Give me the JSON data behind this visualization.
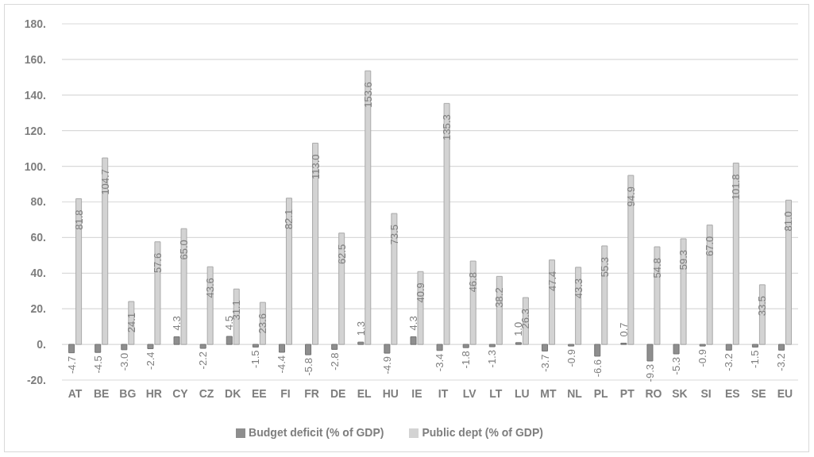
{
  "chart_data": {
    "type": "bar",
    "categories": [
      "AT",
      "BE",
      "BG",
      "HR",
      "CY",
      "CZ",
      "DK",
      "EE",
      "FI",
      "FR",
      "DE",
      "EL",
      "HU",
      "IE",
      "IT",
      "LV",
      "LT",
      "LU",
      "MT",
      "NL",
      "PL",
      "PT",
      "RO",
      "SK",
      "SI",
      "ES",
      "SE",
      "EU"
    ],
    "series": [
      {
        "name": "Budget deficit (% of GDP)",
        "color": "#8e8e8e",
        "values": [
          -4.7,
          -4.5,
          -3.0,
          -2.4,
          4.3,
          -2.2,
          4.5,
          -1.5,
          -4.4,
          -5.8,
          -2.8,
          1.3,
          -4.9,
          4.3,
          -3.4,
          -1.8,
          -1.3,
          1.0,
          -3.7,
          -0.9,
          -6.6,
          0.7,
          -9.3,
          -5.3,
          -0.9,
          -3.2,
          -1.5,
          -3.2
        ],
        "value_labels": [
          "-4.7",
          "-4.5",
          "-3.0",
          "-2.4",
          "4.3",
          "-2.2",
          "4.5",
          "-1.5",
          "-4.4",
          "-5.8",
          "-2.8",
          "1.3",
          "-4.9",
          "4.3",
          "-3.4",
          "-1.8",
          "-1.3",
          "1.0",
          "-3.7",
          "-0.9",
          "-6.6",
          "0.7",
          "-9.3",
          "-5.3",
          "-0.9",
          "-3.2",
          "-1.5",
          "-3.2"
        ]
      },
      {
        "name": "Public dept (% of GDP)",
        "color": "#d3d3d3",
        "values": [
          81.8,
          104.7,
          24.1,
          57.6,
          65.0,
          43.6,
          31.1,
          23.6,
          82.1,
          113.0,
          62.5,
          153.6,
          73.5,
          40.9,
          135.3,
          46.8,
          38.2,
          26.3,
          47.4,
          43.3,
          55.3,
          94.9,
          54.8,
          59.3,
          67.0,
          101.8,
          33.5,
          81.0
        ],
        "value_labels": [
          "81.8",
          "104.7",
          "24.1",
          "57.6",
          "65.0",
          "43.6",
          "31.1",
          "23.6",
          "82.1",
          "113.0",
          "62.5",
          "153.6",
          "73.5",
          "40.9",
          "135.3",
          "46.8",
          "38.2",
          "26.3",
          "47.4",
          "43.3",
          "55.3",
          "94.9",
          "54.8",
          "59.3",
          "67.0",
          "101.8",
          "33.5",
          "81.0"
        ]
      }
    ],
    "ylim": [
      -20,
      180
    ],
    "yticks": [
      {
        "value": -20,
        "label": "-20."
      },
      {
        "value": 0,
        "label": "0."
      },
      {
        "value": 20,
        "label": "20."
      },
      {
        "value": 40,
        "label": "40."
      },
      {
        "value": 60,
        "label": "60."
      },
      {
        "value": 80,
        "label": "80."
      },
      {
        "value": 100,
        "label": "100."
      },
      {
        "value": 120,
        "label": "120."
      },
      {
        "value": 140,
        "label": "140."
      },
      {
        "value": 160,
        "label": "160."
      },
      {
        "value": 180,
        "label": "180."
      }
    ],
    "grid": "y",
    "legend": "bottom"
  }
}
